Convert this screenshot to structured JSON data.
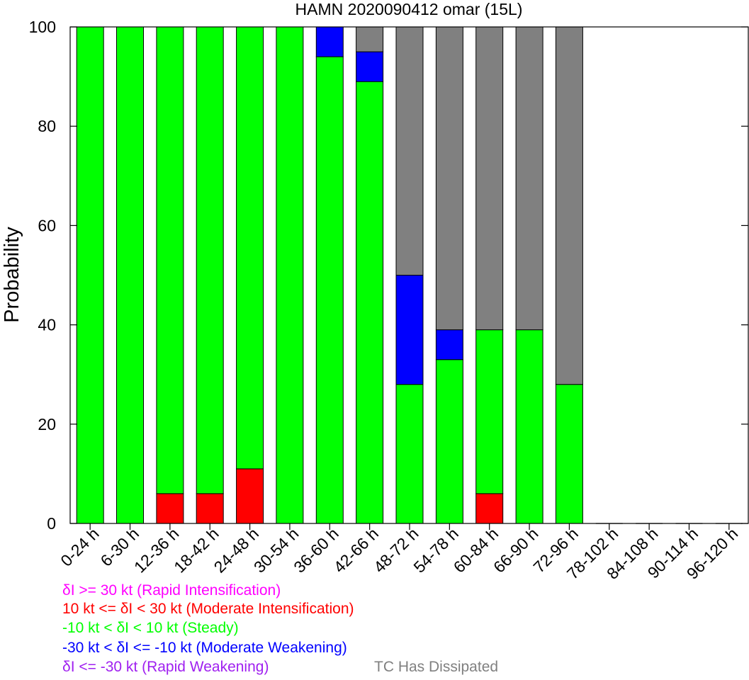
{
  "chart_data": {
    "type": "bar",
    "stacked": true,
    "title": "HAMN 2020090412 omar (15L)",
    "xlabel": "",
    "ylabel": "Probability",
    "ylim": [
      0,
      100
    ],
    "yticks": [
      0,
      20,
      40,
      60,
      80,
      100
    ],
    "grid": false,
    "categories": [
      "0-24 h",
      "6-30 h",
      "12-36 h",
      "18-42 h",
      "24-48 h",
      "30-54 h",
      "36-60 h",
      "42-66 h",
      "48-72 h",
      "54-78 h",
      "60-84 h",
      "66-90 h",
      "72-96 h",
      "78-102 h",
      "84-108 h",
      "90-114 h",
      "96-120 h"
    ],
    "series": [
      {
        "name": "δI >= 30 kt (Rapid Intensification)",
        "color": "#ff00ff",
        "values": [
          0,
          0,
          0,
          0,
          0,
          0,
          0,
          0,
          0,
          0,
          0,
          0,
          0,
          0,
          0,
          0,
          0
        ]
      },
      {
        "name": "10 kt <= δI < 30 kt (Moderate Intensification)",
        "color": "#ff0000",
        "values": [
          0,
          0,
          6,
          6,
          11,
          0,
          0,
          0,
          0,
          0,
          6,
          0,
          0,
          0,
          0,
          0,
          0
        ]
      },
      {
        "name": "-10 kt < δI < 10 kt (Steady)",
        "color": "#00ff00",
        "values": [
          100,
          100,
          94,
          94,
          89,
          100,
          94,
          89,
          28,
          33,
          33,
          39,
          28,
          0,
          0,
          0,
          0
        ]
      },
      {
        "name": "-30 kt < δI <= -10 kt (Moderate Weakening)",
        "color": "#0000ff",
        "values": [
          0,
          0,
          0,
          0,
          0,
          0,
          6,
          6,
          22,
          6,
          0,
          0,
          0,
          0,
          0,
          0,
          0
        ]
      },
      {
        "name": "δI <= -30 kt (Rapid Weakening)",
        "color": "#a020f0",
        "values": [
          0,
          0,
          0,
          0,
          0,
          0,
          0,
          0,
          0,
          0,
          0,
          0,
          0,
          0,
          0,
          0,
          0
        ]
      },
      {
        "name": "TC Has Dissipated",
        "color": "#808080",
        "values": [
          0,
          0,
          0,
          0,
          0,
          0,
          0,
          5,
          50,
          61,
          61,
          61,
          72,
          0,
          0,
          0,
          0
        ]
      }
    ],
    "legend": [
      {
        "text": "δI >= 30 kt (Rapid Intensification)",
        "color": "#ff00ff"
      },
      {
        "text": "10 kt <= δI < 30 kt (Moderate Intensification)",
        "color": "#ff0000"
      },
      {
        "text": "-10 kt < δI < 10 kt (Steady)",
        "color": "#00ff00"
      },
      {
        "text": "-30 kt < δI <= -10 kt (Moderate Weakening)",
        "color": "#0000ff"
      },
      {
        "text": "δI <= -30 kt (Rapid Weakening)",
        "color": "#a020f0"
      },
      {
        "text": "TC Has Dissipated",
        "color": "#808080"
      }
    ],
    "legend_position": "bottom-left"
  }
}
